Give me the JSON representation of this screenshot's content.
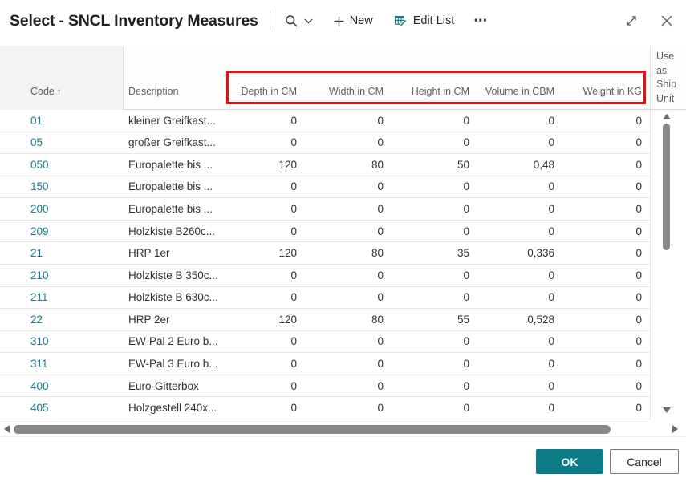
{
  "window": {
    "title": "Select - SNCL Inventory Measures"
  },
  "toolbar": {
    "new_label": "New",
    "edit_list_label": "Edit List",
    "more_label": "⋯"
  },
  "table": {
    "sort_indicator": "↑",
    "columns": [
      {
        "label": "Code"
      },
      {
        "label": "Description"
      },
      {
        "label": "Depth in CM"
      },
      {
        "label": "Width in CM"
      },
      {
        "label": "Height in CM"
      },
      {
        "label": "Volume in CBM"
      },
      {
        "label": "Weight in KG"
      },
      {
        "label": "Use as Ship Unit"
      }
    ],
    "rows": [
      {
        "code": "01",
        "description": "kleiner Greifkast...",
        "depth_cm": "0",
        "width_cm": "0",
        "height_cm": "0",
        "volume_cbm": "0",
        "weight_kg": "0"
      },
      {
        "code": "05",
        "description": "großer Greifkast...",
        "depth_cm": "0",
        "width_cm": "0",
        "height_cm": "0",
        "volume_cbm": "0",
        "weight_kg": "0"
      },
      {
        "code": "050",
        "description": "Europalette bis ...",
        "depth_cm": "120",
        "width_cm": "80",
        "height_cm": "50",
        "volume_cbm": "0,48",
        "weight_kg": "0"
      },
      {
        "code": "150",
        "description": "Europalette bis ...",
        "depth_cm": "0",
        "width_cm": "0",
        "height_cm": "0",
        "volume_cbm": "0",
        "weight_kg": "0"
      },
      {
        "code": "200",
        "description": "Europalette bis ...",
        "depth_cm": "0",
        "width_cm": "0",
        "height_cm": "0",
        "volume_cbm": "0",
        "weight_kg": "0"
      },
      {
        "code": "209",
        "description": "Holzkiste B260c...",
        "depth_cm": "0",
        "width_cm": "0",
        "height_cm": "0",
        "volume_cbm": "0",
        "weight_kg": "0"
      },
      {
        "code": "21",
        "description": "HRP 1er",
        "depth_cm": "120",
        "width_cm": "80",
        "height_cm": "35",
        "volume_cbm": "0,336",
        "weight_kg": "0"
      },
      {
        "code": "210",
        "description": "Holzkiste B 350c...",
        "depth_cm": "0",
        "width_cm": "0",
        "height_cm": "0",
        "volume_cbm": "0",
        "weight_kg": "0"
      },
      {
        "code": "211",
        "description": "Holzkiste B 630c...",
        "depth_cm": "0",
        "width_cm": "0",
        "height_cm": "0",
        "volume_cbm": "0",
        "weight_kg": "0"
      },
      {
        "code": "22",
        "description": "HRP 2er",
        "depth_cm": "120",
        "width_cm": "80",
        "height_cm": "55",
        "volume_cbm": "0,528",
        "weight_kg": "0"
      },
      {
        "code": "310",
        "description": "EW-Pal 2 Euro b...",
        "depth_cm": "0",
        "width_cm": "0",
        "height_cm": "0",
        "volume_cbm": "0",
        "weight_kg": "0"
      },
      {
        "code": "311",
        "description": "EW-Pal 3 Euro b...",
        "depth_cm": "0",
        "width_cm": "0",
        "height_cm": "0",
        "volume_cbm": "0",
        "weight_kg": "0"
      },
      {
        "code": "400",
        "description": "Euro-Gitterbox",
        "depth_cm": "0",
        "width_cm": "0",
        "height_cm": "0",
        "volume_cbm": "0",
        "weight_kg": "0"
      },
      {
        "code": "405",
        "description": "Holzgestell 240x...",
        "depth_cm": "0",
        "width_cm": "0",
        "height_cm": "0",
        "volume_cbm": "0",
        "weight_kg": "0"
      }
    ]
  },
  "annotation": {
    "highlight_box_color": "#e01212",
    "highlighted_columns": [
      "Depth in CM",
      "Width in CM",
      "Height in CM",
      "Volume in CBM",
      "Weight in KG"
    ]
  },
  "colors": {
    "accent": "#0e7c87",
    "link": "#167e8c"
  },
  "buttons": {
    "ok_label": "OK",
    "cancel_label": "Cancel"
  }
}
